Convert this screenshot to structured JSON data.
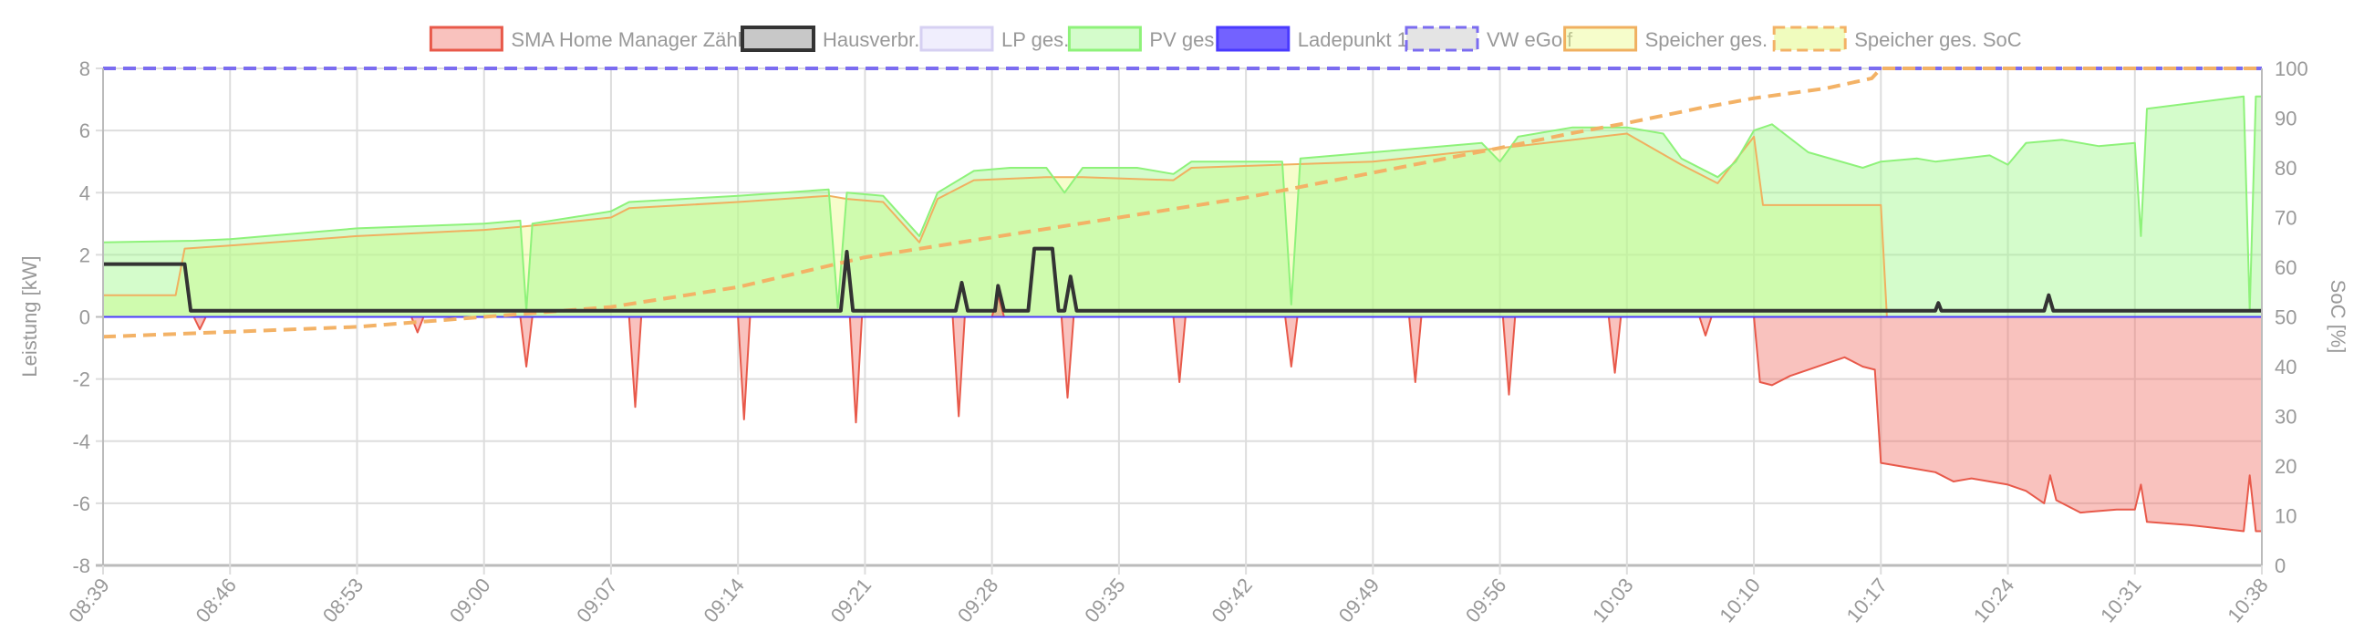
{
  "chart_data": {
    "type": "line",
    "xlabel": "",
    "ylabel": "Leistung [kW]",
    "y2label": "SoC [%]",
    "ylim": [
      -8,
      8
    ],
    "y2lim": [
      0,
      100
    ],
    "yticks": [
      "-8",
      "-6",
      "-4",
      "-2",
      "0",
      "2",
      "4",
      "6",
      "8"
    ],
    "y2ticks": [
      "0",
      "10",
      "20",
      "30",
      "40",
      "50",
      "60",
      "70",
      "80",
      "90",
      "100"
    ],
    "xrange": [
      "08:39",
      "10:38"
    ],
    "xticks": [
      "08:39",
      "08:46",
      "08:53",
      "09:00",
      "09:07",
      "09:14",
      "09:21",
      "09:28",
      "09:35",
      "09:42",
      "09:49",
      "09:56",
      "10:03",
      "10:10",
      "10:17",
      "10:24",
      "10:31",
      "10:38"
    ],
    "grid": true,
    "legend_position": "top",
    "series": [
      {
        "name": "SMA Home Manager Zähler",
        "axis": "left",
        "color": "#e8594a",
        "fill": "rgba(240,110,100,0.42)",
        "dash": false,
        "points": [
          [
            "08:39",
            0
          ],
          [
            "08:44",
            0
          ],
          [
            "08:44:20",
            -0.4
          ],
          [
            "08:44:40",
            0
          ],
          [
            "08:56",
            0
          ],
          [
            "08:56:20",
            -0.5
          ],
          [
            "08:56:40",
            0
          ],
          [
            "09:02",
            0
          ],
          [
            "09:02:20",
            -1.6
          ],
          [
            "09:02:40",
            0
          ],
          [
            "09:08",
            0
          ],
          [
            "09:08:20",
            -2.9
          ],
          [
            "09:08:40",
            0
          ],
          [
            "09:14",
            0
          ],
          [
            "09:14:20",
            -3.3
          ],
          [
            "09:14:40",
            0
          ],
          [
            "09:20:10",
            0
          ],
          [
            "09:20:30",
            -3.4
          ],
          [
            "09:20:50",
            0
          ],
          [
            "09:25:50",
            0
          ],
          [
            "09:26:10",
            -3.2
          ],
          [
            "09:26:30",
            0
          ],
          [
            "09:28",
            0
          ],
          [
            "09:28:20",
            0.7
          ],
          [
            "09:28:40",
            0
          ],
          [
            "09:31:50",
            0
          ],
          [
            "09:32:10",
            -2.6
          ],
          [
            "09:32:30",
            0
          ],
          [
            "09:38",
            0
          ],
          [
            "09:38:20",
            -2.1
          ],
          [
            "09:38:40",
            0
          ],
          [
            "09:44:10",
            0
          ],
          [
            "09:44:30",
            -1.6
          ],
          [
            "09:44:50",
            0
          ],
          [
            "09:51",
            0
          ],
          [
            "09:51:20",
            -2.1
          ],
          [
            "09:51:40",
            0
          ],
          [
            "09:56:10",
            0
          ],
          [
            "09:56:30",
            -2.5
          ],
          [
            "09:56:50",
            0
          ],
          [
            "10:02",
            0
          ],
          [
            "10:02:20",
            -1.8
          ],
          [
            "10:02:40",
            0
          ],
          [
            "10:07",
            0
          ],
          [
            "10:07:20",
            -0.6
          ],
          [
            "10:07:40",
            0
          ],
          [
            "10:10",
            0
          ],
          [
            "10:10:20",
            -2.1
          ],
          [
            "10:11",
            -2.2
          ],
          [
            "10:12",
            -1.9
          ],
          [
            "10:13",
            -1.7
          ],
          [
            "10:14",
            -1.5
          ],
          [
            "10:15",
            -1.3
          ],
          [
            "10:16",
            -1.6
          ],
          [
            "10:16:40",
            -1.7
          ],
          [
            "10:17",
            -4.7
          ],
          [
            "10:18",
            -4.8
          ],
          [
            "10:19",
            -4.9
          ],
          [
            "10:20",
            -5.0
          ],
          [
            "10:21",
            -5.3
          ],
          [
            "10:22",
            -5.2
          ],
          [
            "10:24",
            -5.4
          ],
          [
            "10:25",
            -5.6
          ],
          [
            "10:26",
            -6.0
          ],
          [
            "10:26:20",
            -5.1
          ],
          [
            "10:26:40",
            -5.9
          ],
          [
            "10:28",
            -6.3
          ],
          [
            "10:30",
            -6.2
          ],
          [
            "10:31",
            -6.2
          ],
          [
            "10:31:20",
            -5.4
          ],
          [
            "10:31:40",
            -6.6
          ],
          [
            "10:34",
            -6.7
          ],
          [
            "10:37",
            -6.9
          ],
          [
            "10:37:20",
            -5.1
          ],
          [
            "10:37:40",
            -6.9
          ],
          [
            "10:38",
            -6.9
          ]
        ]
      },
      {
        "name": "Hausverbr.",
        "axis": "left",
        "color": "#333333",
        "fill": "rgba(200,200,200,0.0)",
        "dash": false,
        "points": [
          [
            "08:39",
            1.7
          ],
          [
            "08:43:30",
            1.7
          ],
          [
            "08:43:50",
            0.2
          ],
          [
            "09:19:40",
            0.2
          ],
          [
            "09:20",
            2.1
          ],
          [
            "09:20:20",
            0.2
          ],
          [
            "09:26",
            0.2
          ],
          [
            "09:26:20",
            1.1
          ],
          [
            "09:26:40",
            0.2
          ],
          [
            "09:28:10",
            0.2
          ],
          [
            "09:28:20",
            1.0
          ],
          [
            "09:28:40",
            0.2
          ],
          [
            "09:30",
            0.2
          ],
          [
            "09:30:20",
            2.2
          ],
          [
            "09:31:20",
            2.2
          ],
          [
            "09:31:40",
            0.2
          ],
          [
            "09:32",
            0.2
          ],
          [
            "09:32:20",
            1.3
          ],
          [
            "09:32:40",
            0.2
          ],
          [
            "10:20",
            0.2
          ],
          [
            "10:20:10",
            0.45
          ],
          [
            "10:20:20",
            0.2
          ],
          [
            "10:26",
            0.2
          ],
          [
            "10:26:15",
            0.7
          ],
          [
            "10:26:30",
            0.2
          ],
          [
            "10:38",
            0.2
          ]
        ]
      },
      {
        "name": "LP ges.",
        "axis": "left",
        "color": "#d6d0f2",
        "fill": "rgba(230,226,252,0.6)",
        "dash": false,
        "points": [
          [
            "08:39",
            0
          ],
          [
            "10:38",
            0
          ]
        ]
      },
      {
        "name": "PV ges.",
        "axis": "left",
        "color": "#8ef27a",
        "fill": "rgba(160,248,140,0.45)",
        "dash": false,
        "points": [
          [
            "08:39",
            2.4
          ],
          [
            "08:44",
            2.45
          ],
          [
            "08:46",
            2.5
          ],
          [
            "08:53",
            2.85
          ],
          [
            "09:00",
            3.0
          ],
          [
            "09:02",
            3.1
          ],
          [
            "09:02:20",
            0.2
          ],
          [
            "09:02:40",
            3.0
          ],
          [
            "09:07",
            3.4
          ],
          [
            "09:08",
            3.7
          ],
          [
            "09:14",
            3.9
          ],
          [
            "09:19",
            4.1
          ],
          [
            "09:19:30",
            0.3
          ],
          [
            "09:20",
            4.0
          ],
          [
            "09:22",
            3.9
          ],
          [
            "09:24",
            2.6
          ],
          [
            "09:25",
            4.0
          ],
          [
            "09:27",
            4.7
          ],
          [
            "09:29",
            4.8
          ],
          [
            "09:31",
            4.8
          ],
          [
            "09:32",
            4.0
          ],
          [
            "09:33",
            4.8
          ],
          [
            "09:36",
            4.8
          ],
          [
            "09:38",
            4.6
          ],
          [
            "09:39",
            5.0
          ],
          [
            "09:44",
            5.0
          ],
          [
            "09:44:30",
            0.4
          ],
          [
            "09:45",
            5.1
          ],
          [
            "09:49",
            5.3
          ],
          [
            "09:55",
            5.6
          ],
          [
            "09:56",
            5.0
          ],
          [
            "09:57",
            5.8
          ],
          [
            "10:00",
            6.1
          ],
          [
            "10:03",
            6.1
          ],
          [
            "10:05",
            5.9
          ],
          [
            "10:06",
            5.1
          ],
          [
            "10:08",
            4.5
          ],
          [
            "10:09",
            5.0
          ],
          [
            "10:10",
            6.0
          ],
          [
            "10:11",
            6.2
          ],
          [
            "10:13",
            5.3
          ],
          [
            "10:16",
            4.8
          ],
          [
            "10:17",
            5.0
          ],
          [
            "10:19",
            5.1
          ],
          [
            "10:20",
            5.0
          ],
          [
            "10:23",
            5.2
          ],
          [
            "10:24",
            4.9
          ],
          [
            "10:25",
            5.6
          ],
          [
            "10:27",
            5.7
          ],
          [
            "10:29",
            5.5
          ],
          [
            "10:31",
            5.6
          ],
          [
            "10:31:20",
            2.6
          ],
          [
            "10:31:40",
            6.7
          ],
          [
            "10:37",
            7.1
          ],
          [
            "10:37:20",
            0.2
          ],
          [
            "10:37:40",
            7.1
          ],
          [
            "10:38",
            7.1
          ]
        ]
      },
      {
        "name": "Ladepunkt 1",
        "axis": "left",
        "color": "#4a3aff",
        "fill": "rgba(90,70,255,0.85)",
        "dash": false,
        "points": [
          [
            "08:39",
            0
          ],
          [
            "10:38",
            0
          ]
        ]
      },
      {
        "name": "VW eGolf",
        "axis": "right",
        "color": "#7b6cf0",
        "fill": "rgba(228,228,228,1)",
        "dash": true,
        "points": [
          [
            "08:39",
            100
          ],
          [
            "10:38",
            100
          ]
        ]
      },
      {
        "name": "Speicher ges.",
        "axis": "left",
        "color": "#f0b060",
        "fill": "rgba(235,250,140,0.45)",
        "dash": false,
        "points": [
          [
            "08:39",
            0.7
          ],
          [
            "08:43",
            0.7
          ],
          [
            "08:43:30",
            2.2
          ],
          [
            "08:46",
            2.3
          ],
          [
            "08:53",
            2.6
          ],
          [
            "09:00",
            2.8
          ],
          [
            "09:02",
            2.9
          ],
          [
            "09:07",
            3.2
          ],
          [
            "09:08",
            3.5
          ],
          [
            "09:14",
            3.7
          ],
          [
            "09:19",
            3.9
          ],
          [
            "09:20",
            3.8
          ],
          [
            "09:22",
            3.7
          ],
          [
            "09:24",
            2.4
          ],
          [
            "09:25",
            3.8
          ],
          [
            "09:27",
            4.4
          ],
          [
            "09:31",
            4.5
          ],
          [
            "09:33",
            4.5
          ],
          [
            "09:38",
            4.4
          ],
          [
            "09:39",
            4.8
          ],
          [
            "09:49",
            5.0
          ],
          [
            "09:57",
            5.5
          ],
          [
            "10:03",
            5.9
          ],
          [
            "10:06",
            4.9
          ],
          [
            "10:08",
            4.3
          ],
          [
            "10:10",
            5.8
          ],
          [
            "10:10:30",
            3.6
          ],
          [
            "10:17",
            3.6
          ],
          [
            "10:17:20",
            0
          ],
          [
            "10:38",
            0
          ]
        ]
      },
      {
        "name": "Speicher ges. SoC",
        "axis": "right",
        "color": "#f3b266",
        "fill": "rgba(240,252,190,1)",
        "dash": true,
        "points": [
          [
            "08:39",
            46
          ],
          [
            "08:46",
            47
          ],
          [
            "08:53",
            48
          ],
          [
            "09:00",
            50
          ],
          [
            "09:07",
            52
          ],
          [
            "09:14",
            56
          ],
          [
            "09:21",
            62
          ],
          [
            "09:28",
            66
          ],
          [
            "09:35",
            70
          ],
          [
            "09:42",
            74
          ],
          [
            "09:49",
            79
          ],
          [
            "09:56",
            84
          ],
          [
            "10:00",
            87
          ],
          [
            "10:03",
            89
          ],
          [
            "10:07",
            92
          ],
          [
            "10:10",
            94
          ],
          [
            "10:14",
            96
          ],
          [
            "10:16:30",
            98
          ],
          [
            "10:17",
            100
          ],
          [
            "10:38",
            100
          ]
        ]
      }
    ]
  }
}
